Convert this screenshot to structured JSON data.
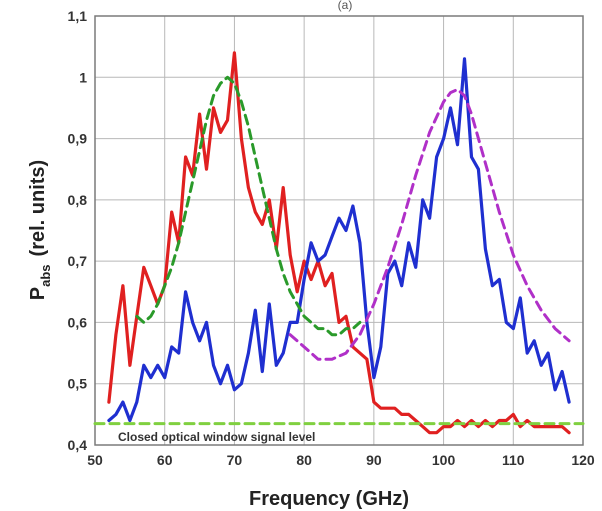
{
  "panel_label": "(a)",
  "chart_data": {
    "type": "line",
    "xlabel": "Frequency (GHz)",
    "ylabel_main": "P",
    "ylabel_sub": "abs",
    "ylabel_units": "(rel. units)",
    "xlim": [
      50,
      120
    ],
    "ylim": [
      0.4,
      1.1
    ],
    "xticks": [
      50,
      60,
      70,
      80,
      90,
      100,
      110,
      120
    ],
    "xtick_labels": [
      "50",
      "60",
      "70",
      "80",
      "90",
      "100",
      "110",
      "120"
    ],
    "yticks": [
      0.4,
      0.5,
      0.6,
      0.7,
      0.8,
      0.9,
      1.0,
      1.1
    ],
    "ytick_labels": [
      "0,4",
      "0,5",
      "0,6",
      "0,7",
      "0,8",
      "0,9",
      "1",
      "1,1"
    ],
    "grid": true,
    "annotation": "Closed optical window signal level",
    "colors": {
      "red": "#e02020",
      "blue": "#1f2fd0",
      "green": "#2a9a2a",
      "purple": "#b030c8",
      "light_green": "#80d040"
    },
    "series": [
      {
        "color_key": "red",
        "style": "solid",
        "x": [
          52,
          53,
          54,
          55,
          56,
          57,
          58,
          59,
          60,
          61,
          62,
          63,
          64,
          65,
          66,
          67,
          68,
          69,
          70,
          71,
          72,
          73,
          74,
          75,
          76,
          77,
          78,
          79,
          80,
          81,
          82,
          83,
          84,
          85,
          86,
          87,
          88,
          89,
          90,
          91,
          92,
          93,
          94,
          95,
          96,
          97,
          98,
          99,
          100,
          101,
          102,
          103,
          104,
          105,
          106,
          107,
          108,
          109,
          110,
          111,
          112,
          113,
          114,
          115,
          116,
          117,
          118
        ],
        "y": [
          0.47,
          0.58,
          0.66,
          0.53,
          0.61,
          0.69,
          0.66,
          0.63,
          0.66,
          0.78,
          0.73,
          0.87,
          0.84,
          0.94,
          0.85,
          0.95,
          0.91,
          0.93,
          1.04,
          0.9,
          0.82,
          0.78,
          0.76,
          0.8,
          0.72,
          0.82,
          0.71,
          0.65,
          0.7,
          0.67,
          0.7,
          0.66,
          0.68,
          0.6,
          0.61,
          0.56,
          0.55,
          0.54,
          0.47,
          0.46,
          0.46,
          0.46,
          0.45,
          0.45,
          0.44,
          0.43,
          0.42,
          0.42,
          0.43,
          0.43,
          0.44,
          0.43,
          0.44,
          0.43,
          0.44,
          0.43,
          0.44,
          0.44,
          0.45,
          0.43,
          0.44,
          0.43,
          0.43,
          0.43,
          0.43,
          0.43,
          0.42
        ]
      },
      {
        "color_key": "blue",
        "style": "solid",
        "x": [
          52,
          53,
          54,
          55,
          56,
          57,
          58,
          59,
          60,
          61,
          62,
          63,
          64,
          65,
          66,
          67,
          68,
          69,
          70,
          71,
          72,
          73,
          74,
          75,
          76,
          77,
          78,
          79,
          80,
          81,
          82,
          83,
          84,
          85,
          86,
          87,
          88,
          89,
          90,
          91,
          92,
          93,
          94,
          95,
          96,
          97,
          98,
          99,
          100,
          101,
          102,
          103,
          104,
          105,
          106,
          107,
          108,
          109,
          110,
          111,
          112,
          113,
          114,
          115,
          116,
          117,
          118
        ],
        "y": [
          0.44,
          0.45,
          0.47,
          0.44,
          0.47,
          0.53,
          0.51,
          0.53,
          0.51,
          0.56,
          0.55,
          0.65,
          0.6,
          0.57,
          0.6,
          0.53,
          0.5,
          0.53,
          0.49,
          0.5,
          0.55,
          0.62,
          0.52,
          0.63,
          0.53,
          0.55,
          0.6,
          0.6,
          0.67,
          0.73,
          0.7,
          0.71,
          0.74,
          0.77,
          0.75,
          0.79,
          0.73,
          0.6,
          0.51,
          0.56,
          0.68,
          0.7,
          0.66,
          0.73,
          0.69,
          0.8,
          0.77,
          0.87,
          0.9,
          0.95,
          0.89,
          1.03,
          0.87,
          0.85,
          0.72,
          0.66,
          0.67,
          0.6,
          0.59,
          0.64,
          0.55,
          0.57,
          0.53,
          0.55,
          0.49,
          0.52,
          0.47
        ]
      },
      {
        "color_key": "green",
        "style": "dashed",
        "x": [
          56,
          57,
          58,
          59,
          60,
          61,
          62,
          63,
          64,
          65,
          66,
          67,
          68,
          69,
          70,
          71,
          72,
          73,
          74,
          75,
          76,
          77,
          78,
          79,
          80,
          81,
          82,
          83,
          84,
          85,
          86,
          87,
          88
        ],
        "y": [
          0.61,
          0.6,
          0.61,
          0.63,
          0.66,
          0.69,
          0.73,
          0.78,
          0.83,
          0.88,
          0.93,
          0.97,
          0.99,
          1.0,
          0.99,
          0.96,
          0.92,
          0.87,
          0.82,
          0.77,
          0.72,
          0.68,
          0.65,
          0.63,
          0.61,
          0.6,
          0.59,
          0.59,
          0.58,
          0.58,
          0.59,
          0.59,
          0.6
        ]
      },
      {
        "color_key": "purple",
        "style": "dashed",
        "x": [
          78,
          80,
          82,
          84,
          86,
          88,
          90,
          92,
          94,
          96,
          98,
          100,
          101,
          102,
          103,
          104,
          106,
          108,
          110,
          112,
          114,
          116,
          118
        ],
        "y": [
          0.58,
          0.56,
          0.54,
          0.54,
          0.55,
          0.58,
          0.63,
          0.69,
          0.76,
          0.84,
          0.91,
          0.96,
          0.975,
          0.98,
          0.97,
          0.94,
          0.86,
          0.78,
          0.71,
          0.66,
          0.62,
          0.59,
          0.57
        ]
      },
      {
        "color_key": "light_green",
        "style": "dashed",
        "x": [
          50,
          120
        ],
        "y": [
          0.435,
          0.435
        ]
      }
    ]
  }
}
